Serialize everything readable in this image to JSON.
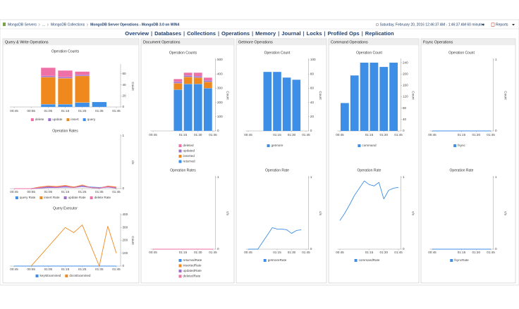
{
  "header": {
    "breadcrumb": [
      "MongoDB Servers",
      "...",
      "MongoDB Collections",
      "MongoDB Server Operations - MongoDB 3.0 on WIN4"
    ],
    "time_range": "Saturday, February 20, 2016 12:46:37 AM - 1:46:37 AM 60 minutes",
    "reports": "Reports"
  },
  "nav": [
    "Overview",
    "Databases",
    "Collections",
    "Operations",
    "Memory",
    "Journal",
    "Locks",
    "Profiled Ops",
    "Replication"
  ],
  "panels": [
    {
      "title": "Query & Write Operations",
      "charts": [
        {
          "type": "stacked-bar",
          "title": "Operation Counts",
          "y_label": "Count",
          "categories": [
            "00:45",
            null,
            "00:55",
            null,
            "01:05",
            null,
            "01:15",
            null,
            "01:25",
            null,
            "01:35",
            null,
            "01:45"
          ],
          "ylim": [
            0,
            75
          ],
          "yticks": [
            0,
            20,
            40,
            60
          ],
          "series": [
            {
              "name": "delete",
              "color": "#ef6fa7",
              "values": [
                null,
                null,
                null,
                null,
                15,
                null,
                12,
                null,
                6,
                null,
                0,
                null,
                null
              ]
            },
            {
              "name": "update",
              "color": "#9b6fd0",
              "values": [
                null,
                null,
                null,
                null,
                2,
                null,
                2,
                null,
                2,
                null,
                0,
                null,
                null
              ]
            },
            {
              "name": "insert",
              "color": "#f0891d",
              "values": [
                null,
                null,
                null,
                null,
                49,
                null,
                47,
                null,
                48,
                null,
                0,
                null,
                null
              ]
            },
            {
              "name": "query",
              "color": "#3d8ee6",
              "values": [
                null,
                null,
                null,
                null,
                5,
                null,
                5,
                null,
                8,
                null,
                9,
                null,
                null
              ]
            }
          ]
        },
        {
          "type": "line",
          "title": "Operation Rates",
          "y_label": "c/s",
          "categories": [
            "00:45",
            null,
            "00:55",
            null,
            "01:05",
            null,
            "01:15",
            null,
            "01:25",
            null,
            "01:35",
            null,
            "01:45"
          ],
          "ylim": [
            0,
            1
          ],
          "yticks": [
            0,
            1
          ],
          "series": [
            {
              "name": "query Rate",
              "color": "#3d8ee6",
              "values": [
                0,
                0,
                0,
                0.02,
                0.03,
                0.03,
                0.04,
                0.03,
                0.05,
                0.03,
                0.02,
                0.03,
                0.02
              ]
            },
            {
              "name": "insert Rate",
              "color": "#f0891d",
              "values": [
                0,
                0,
                0,
                0.03,
                0.05,
                0.04,
                0.06,
                0.03,
                0.07,
                0.02,
                0.01,
                0.05,
                0.03
              ]
            },
            {
              "name": "update Rate",
              "color": "#9b6fd0",
              "values": [
                0,
                0,
                0,
                0.01,
                0.02,
                0.02,
                0.03,
                0.02,
                0.04,
                0.02,
                0.01,
                0.03,
                0.01
              ]
            },
            {
              "name": "delete Rate",
              "color": "#ef6fa7",
              "values": [
                0,
                0,
                0,
                0.02,
                0.04,
                0.03,
                0.05,
                0.02,
                0.06,
                0.02,
                0.01,
                0.04,
                0.02
              ]
            }
          ]
        },
        {
          "type": "line",
          "title": "Query Executor",
          "y_label": "Count",
          "categories": [
            "00:45",
            null,
            "00:55",
            null,
            "01:05",
            null,
            "01:15",
            null,
            "01:25",
            null,
            "01:35",
            null,
            "01:45"
          ],
          "ylim": [
            0,
            400
          ],
          "yticks": [
            0,
            100,
            200,
            300,
            400
          ],
          "series": [
            {
              "name": "keysExamined",
              "color": "#3d8ee6",
              "values": [
                0,
                0,
                0,
                0,
                0,
                0,
                0,
                0,
                0,
                0,
                0,
                0,
                0
              ]
            },
            {
              "name": "docsExamined",
              "color": "#f0891d",
              "values": [
                null,
                null,
                0,
                75,
                150,
                225,
                300,
                260,
                320,
                160,
                0,
                310,
                100
              ]
            }
          ]
        }
      ]
    },
    {
      "title": "Document Operations",
      "charts": [
        {
          "type": "stacked-bar",
          "title": "Operation Counts",
          "y_label": "Count",
          "categories": [
            "00:45",
            null,
            null,
            null,
            null,
            null,
            "01:15",
            null,
            null,
            "01:30",
            null,
            null,
            "01:45"
          ],
          "ylim": [
            0,
            500
          ],
          "yticks": [
            0,
            100,
            200,
            300,
            400,
            500
          ],
          "series": [
            {
              "name": "deleted",
              "color": "#ef6fa7",
              "values": [
                null,
                null,
                null,
                null,
                null,
                20,
                null,
                20,
                null,
                25,
                null,
                20,
                null
              ]
            },
            {
              "name": "updated",
              "color": "#9b6fd0",
              "values": [
                null,
                null,
                null,
                null,
                null,
                10,
                null,
                10,
                null,
                10,
                null,
                10,
                null
              ]
            },
            {
              "name": "inserted",
              "color": "#f0891d",
              "values": [
                null,
                null,
                null,
                null,
                null,
                45,
                null,
                50,
                null,
                45,
                null,
                45,
                null
              ]
            },
            {
              "name": "returned",
              "color": "#3d8ee6",
              "values": [
                null,
                null,
                null,
                null,
                null,
                290,
                null,
                330,
                null,
                330,
                null,
                300,
                null
              ]
            }
          ]
        },
        {
          "type": "line",
          "title": "Operation Rates",
          "y_label": "c/s",
          "categories": [
            "00:45",
            null,
            null,
            null,
            null,
            null,
            "01:15",
            null,
            null,
            "01:30",
            null,
            null,
            "01:45"
          ],
          "ylim": [
            0,
            1
          ],
          "yticks": [
            0,
            1
          ],
          "series": [
            {
              "name": "returnedRate",
              "color": "#3d8ee6",
              "values": [
                0,
                0,
                0,
                0,
                0,
                0,
                0,
                0,
                0,
                0,
                0,
                0,
                0
              ]
            },
            {
              "name": "insertedRate",
              "color": "#f0891d",
              "values": [
                0,
                0,
                0,
                0,
                0,
                0,
                0,
                0,
                0,
                0,
                0,
                0,
                0
              ]
            },
            {
              "name": "updatedRate",
              "color": "#9b6fd0",
              "values": [
                0,
                0,
                0,
                0,
                0,
                0,
                0,
                0,
                0,
                0,
                0,
                0,
                0
              ]
            },
            {
              "name": "deletedRate",
              "color": "#ef6fa7",
              "values": [
                0,
                0,
                0,
                0,
                0,
                0,
                0,
                0,
                0,
                0,
                0,
                0,
                0
              ]
            }
          ]
        }
      ]
    },
    {
      "title": "Getmore Operations",
      "charts": [
        {
          "type": "bar",
          "title": "Operation Count",
          "y_label": "Count",
          "categories": [
            "00:45",
            null,
            null,
            null,
            null,
            null,
            "01:15",
            null,
            null,
            "01:30",
            null,
            null,
            "01:45"
          ],
          "ylim": [
            0,
            100
          ],
          "yticks": [
            0,
            20,
            40,
            60,
            80,
            100
          ],
          "series": [
            {
              "name": "getmore",
              "color": "#3d8ee6",
              "values": [
                null,
                null,
                null,
                null,
                83,
                null,
                83,
                null,
                75,
                null,
                72,
                null,
                null
              ]
            }
          ]
        },
        {
          "type": "line",
          "title": "Operation Rate",
          "y_label": "c/s",
          "categories": [
            "00:45",
            null,
            null,
            null,
            null,
            null,
            "01:15",
            null,
            null,
            "01:30",
            null,
            null,
            "01:45"
          ],
          "ylim": [
            0,
            1
          ],
          "yticks": [
            0,
            1
          ],
          "series": [
            {
              "name": "getmoreRate",
              "color": "#3d8ee6",
              "values": [
                0,
                0,
                0,
                0.1,
                0.2,
                0.3,
                0.28,
                0.28,
                0.27,
                0.22,
                0.26,
                0.27,
                null
              ]
            }
          ]
        }
      ]
    },
    {
      "title": "Command Operations",
      "charts": [
        {
          "type": "bar",
          "title": "Operation Count",
          "y_label": "Count",
          "categories": [
            "00:45",
            null,
            null,
            null,
            null,
            null,
            "01:15",
            null,
            null,
            "01:30",
            null,
            null,
            "01:45"
          ],
          "ylim": [
            0,
            250
          ],
          "yticks": [
            0,
            40,
            80,
            120,
            160,
            200,
            240
          ],
          "series": [
            {
              "name": "command",
              "color": "#3d8ee6",
              "values": [
                null,
                98,
                null,
                195,
                null,
                240,
                null,
                240,
                null,
                225,
                null,
                240,
                null
              ]
            }
          ]
        },
        {
          "type": "line",
          "title": "Operation Rate",
          "y_label": "c/s",
          "categories": [
            "00:45",
            null,
            null,
            null,
            null,
            null,
            "01:15",
            null,
            null,
            "01:30",
            null,
            null,
            "01:45"
          ],
          "ylim": [
            0,
            1
          ],
          "yticks": [
            0,
            1
          ],
          "series": [
            {
              "name": "commandRate",
              "color": "#3d8ee6",
              "values": [
                0.4,
                0.5,
                0.62,
                0.75,
                0.85,
                0.95,
                0.9,
                0.88,
                0.93,
                0.7,
                0.82,
                0.85,
                0.86
              ]
            }
          ]
        }
      ]
    },
    {
      "title": "Fsync Operations",
      "charts": [
        {
          "type": "line",
          "title": "Operation Count",
          "y_label": "Count",
          "categories": [
            "00:45",
            null,
            null,
            null,
            null,
            null,
            "01:15",
            null,
            null,
            "01:30",
            null,
            null,
            "01:45"
          ],
          "ylim": [
            0,
            1
          ],
          "yticks": [
            0,
            1
          ],
          "series": [
            {
              "name": "fsync",
              "color": "#3d8ee6",
              "values": [
                0,
                0,
                0,
                0,
                0,
                0,
                0,
                0,
                0,
                0,
                0,
                0,
                0
              ]
            }
          ]
        },
        {
          "type": "line",
          "title": "Operation Rate",
          "y_label": "c/s",
          "categories": [
            "00:45",
            null,
            null,
            null,
            null,
            null,
            "01:15",
            null,
            null,
            "01:30",
            null,
            null,
            "01:45"
          ],
          "ylim": [
            0,
            1
          ],
          "yticks": [
            0,
            1
          ],
          "series": [
            {
              "name": "fsyncRate",
              "color": "#3d8ee6",
              "values": [
                0,
                0,
                0,
                0,
                0,
                0,
                0,
                0,
                0,
                0,
                0,
                0,
                0
              ]
            }
          ]
        }
      ]
    }
  ]
}
